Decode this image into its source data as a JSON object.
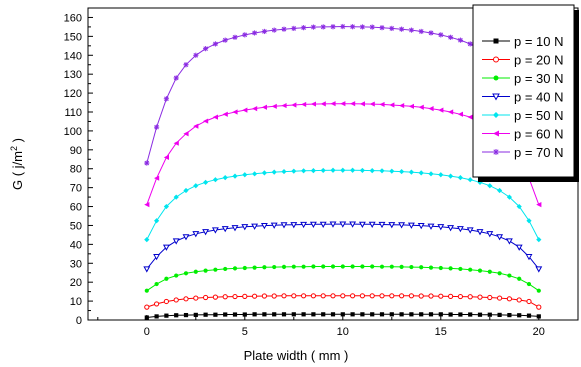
{
  "chart_data": {
    "type": "line",
    "xlabel": "Plate width ( mm )",
    "ylabel_main": "G ( j/m",
    "ylabel_sup": "2",
    "ylabel_close": " )",
    "xlim": [
      -3,
      22
    ],
    "ylim": [
      0,
      165
    ],
    "xticks": [
      0,
      5,
      10,
      15,
      20
    ],
    "yticks": [
      0,
      10,
      20,
      30,
      40,
      50,
      60,
      70,
      80,
      90,
      100,
      110,
      120,
      130,
      140,
      150,
      160
    ],
    "grid": false,
    "legend_position": "top-right",
    "x": [
      0,
      0.5,
      1,
      1.5,
      2,
      2.5,
      3,
      3.5,
      4,
      4.5,
      5,
      5.5,
      6,
      6.5,
      7,
      7.5,
      8,
      8.5,
      9,
      9.5,
      10,
      10.5,
      11,
      11.5,
      12,
      12.5,
      13,
      13.5,
      14,
      14.5,
      15,
      15.5,
      16,
      16.5,
      17,
      17.5,
      18,
      18.5,
      19,
      19.5,
      20
    ],
    "series": [
      {
        "name": "p = 10 N",
        "color": "#000000",
        "marker": "square",
        "values": [
          1.3,
          1.9,
          2.3,
          2.5,
          2.6,
          2.7,
          2.8,
          2.8,
          2.9,
          2.9,
          2.9,
          3.0,
          3.0,
          3.0,
          3.0,
          3.0,
          3.0,
          3.0,
          3.0,
          3.0,
          3.0,
          3.0,
          3.0,
          3.0,
          3.0,
          3.0,
          3.0,
          3.0,
          3.0,
          3.0,
          3.0,
          2.9,
          2.9,
          2.9,
          2.8,
          2.8,
          2.7,
          2.6,
          2.5,
          2.3,
          1.9
        ]
      },
      {
        "name": "p = 20 N",
        "color": "#ff0000",
        "marker": "circle-open",
        "values": [
          6.8,
          8.5,
          9.8,
          10.6,
          11.2,
          11.6,
          11.9,
          12.1,
          12.3,
          12.4,
          12.5,
          12.6,
          12.7,
          12.7,
          12.8,
          12.8,
          12.8,
          12.8,
          12.8,
          12.8,
          12.8,
          12.8,
          12.8,
          12.8,
          12.8,
          12.8,
          12.8,
          12.8,
          12.7,
          12.7,
          12.6,
          12.5,
          12.4,
          12.3,
          12.1,
          11.9,
          11.6,
          11.2,
          10.6,
          9.8,
          6.8
        ]
      },
      {
        "name": "p = 30 N",
        "color": "#00ee00",
        "marker": "circle-filled",
        "values": [
          15.5,
          19.0,
          21.8,
          23.5,
          24.7,
          25.5,
          26.1,
          26.6,
          27.0,
          27.3,
          27.5,
          27.7,
          27.9,
          28.0,
          28.1,
          28.2,
          28.2,
          28.3,
          28.3,
          28.3,
          28.3,
          28.3,
          28.3,
          28.3,
          28.2,
          28.2,
          28.1,
          28.0,
          27.9,
          27.7,
          27.5,
          27.3,
          27.0,
          26.6,
          26.1,
          25.5,
          24.7,
          23.5,
          21.8,
          19.0,
          15.5
        ]
      },
      {
        "name": "p = 40 N",
        "color": "#0000cc",
        "marker": "triangle-down-open",
        "values": [
          27.0,
          33.5,
          38.5,
          41.8,
          44.0,
          45.6,
          46.7,
          47.6,
          48.3,
          48.8,
          49.3,
          49.6,
          49.9,
          50.1,
          50.3,
          50.4,
          50.5,
          50.6,
          50.6,
          50.7,
          50.7,
          50.7,
          50.6,
          50.6,
          50.5,
          50.4,
          50.3,
          50.1,
          49.9,
          49.6,
          49.3,
          48.8,
          48.3,
          47.6,
          46.7,
          45.6,
          44.0,
          41.8,
          38.5,
          33.5,
          27.0
        ]
      },
      {
        "name": "p = 50 N",
        "color": "#00e5ee",
        "marker": "diamond",
        "values": [
          42.5,
          52.5,
          60.0,
          65.0,
          68.5,
          71.0,
          72.8,
          74.2,
          75.3,
          76.1,
          76.8,
          77.3,
          77.8,
          78.2,
          78.5,
          78.7,
          78.9,
          79.0,
          79.1,
          79.2,
          79.2,
          79.2,
          79.1,
          79.0,
          78.9,
          78.7,
          78.5,
          78.2,
          77.8,
          77.3,
          76.8,
          76.1,
          75.3,
          74.2,
          72.8,
          71.0,
          68.5,
          65.0,
          60.0,
          52.5,
          42.5
        ]
      },
      {
        "name": "p = 60 N",
        "color": "#ee00ee",
        "marker": "triangle-left",
        "values": [
          61.0,
          75.0,
          86.0,
          93.5,
          98.5,
          102.5,
          105.2,
          107.3,
          108.8,
          110.0,
          111.0,
          111.8,
          112.5,
          113.0,
          113.4,
          113.7,
          114.0,
          114.2,
          114.3,
          114.4,
          114.4,
          114.4,
          114.3,
          114.2,
          114.0,
          113.7,
          113.4,
          113.0,
          112.5,
          111.8,
          111.0,
          110.0,
          108.8,
          107.3,
          105.2,
          102.5,
          98.5,
          93.5,
          86.0,
          75.0,
          61.0
        ]
      },
      {
        "name": "p = 70 N",
        "color": "#8a2be2",
        "marker": "asterisk",
        "values": [
          83.0,
          102.0,
          117.0,
          128.0,
          135.0,
          140.0,
          143.5,
          146.0,
          148.0,
          149.5,
          150.8,
          151.8,
          152.6,
          153.3,
          153.8,
          154.2,
          154.6,
          154.9,
          155.0,
          155.1,
          155.2,
          155.1,
          155.0,
          154.9,
          154.6,
          154.2,
          153.8,
          153.3,
          152.6,
          151.8,
          150.8,
          149.5,
          148.0,
          146.0,
          143.5,
          140.0,
          135.0,
          128.0,
          117.0,
          102.0,
          83.0
        ]
      }
    ]
  }
}
